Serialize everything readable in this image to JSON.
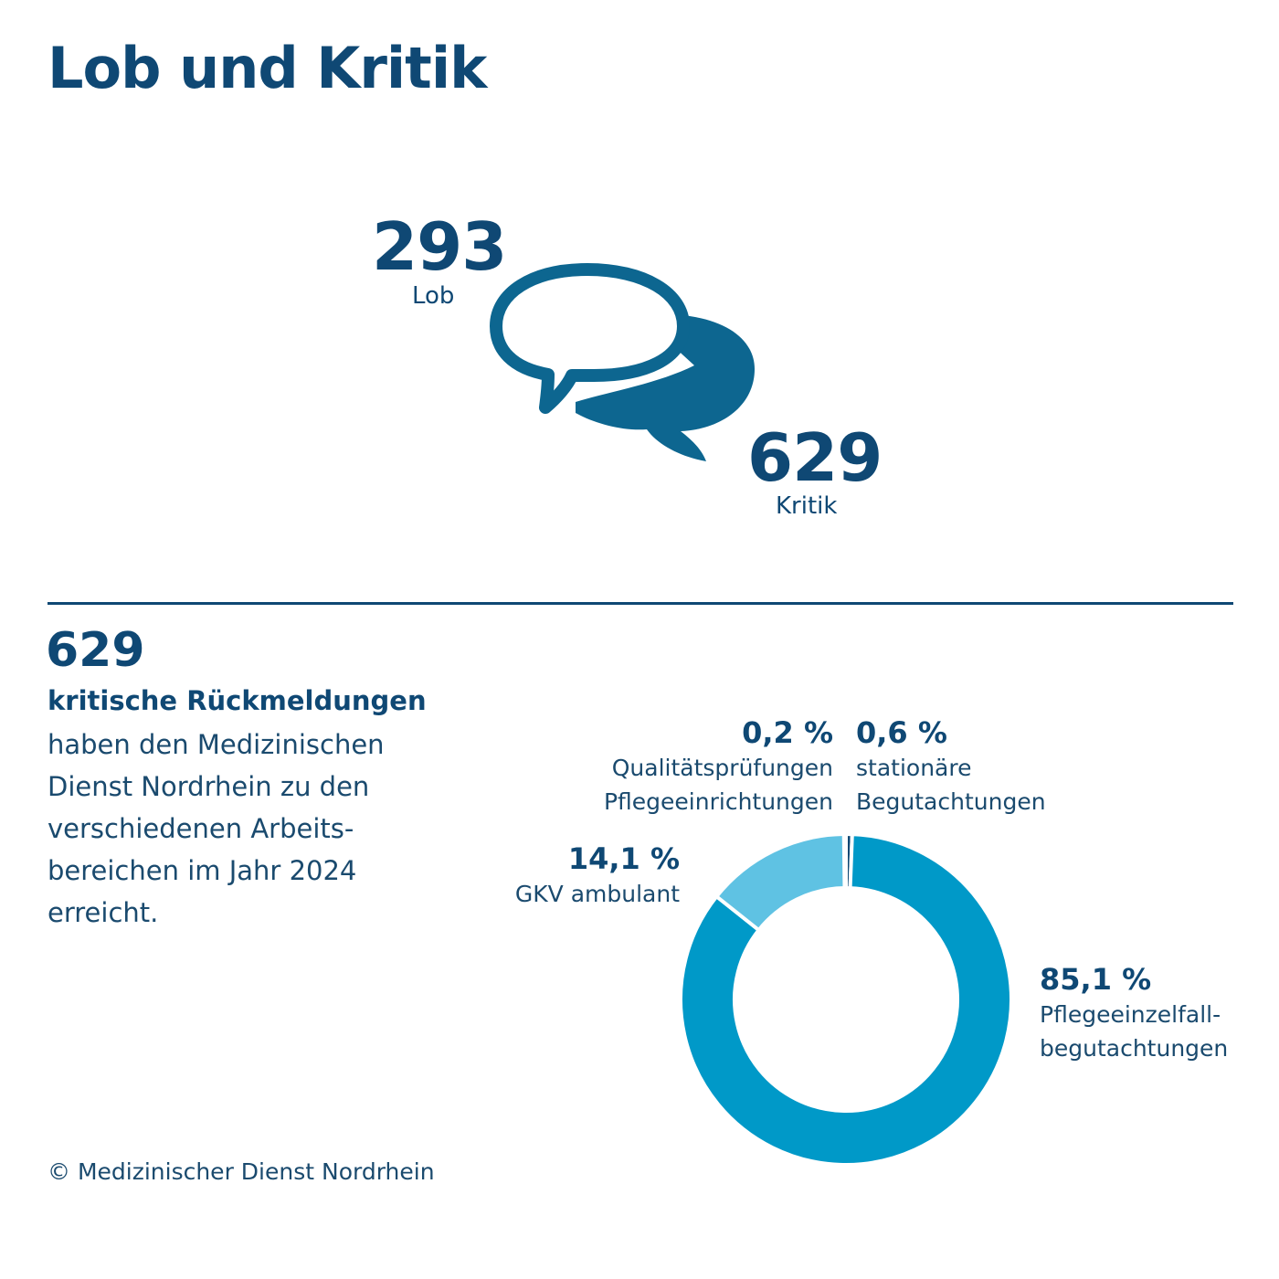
{
  "title": "Lob und Kritik",
  "lob": {
    "count": "293",
    "label": "Lob"
  },
  "kritik": {
    "count": "629",
    "label": "Kritik"
  },
  "colors": {
    "dark_blue": "#0f4874",
    "bubble_blue": "#0d6690",
    "segment_main": "#0099c8",
    "segment_light": "#5fc2e3",
    "segment_dark": "#0f4874"
  },
  "icons": {
    "praise_bubble": "speech-bubble-outline-icon",
    "criticism_bubble": "speech-bubble-filled-icon"
  },
  "summary": {
    "count": "629",
    "subtitle": "kritische Rückmeldungen",
    "description_lines": [
      "haben den Medizinischen",
      "Dienst Nordrhein zu den",
      "verschiedenen Arbeits-",
      "bereichen im Jahr 2024",
      "erreicht."
    ]
  },
  "chart_data": {
    "type": "pie",
    "donut": true,
    "categories": [
      "Qualitätsprüfungen Pflegeeinrichtungen",
      "stationäre Begutachtungen",
      "Pflegeeinzelfallbegutachtungen",
      "GKV ambulant"
    ],
    "values": [
      0.2,
      0.6,
      85.1,
      14.1
    ],
    "unit": "%",
    "slice_colors": [
      "#0f4874",
      "#0f4874",
      "#0099c8",
      "#5fc2e3"
    ],
    "labels": [
      {
        "pct": "0,2 %",
        "lines": [
          "Qualitätsprüfungen",
          "Pflegeeinrichtungen"
        ]
      },
      {
        "pct": "0,6 %",
        "lines": [
          "stationäre",
          "Begutachtungen"
        ]
      },
      {
        "pct": "85,1 %",
        "lines": [
          "Pflegeeinzelfall-",
          "begutachtungen"
        ]
      },
      {
        "pct": "14,1 %",
        "lines": [
          "GKV ambulant"
        ]
      }
    ]
  },
  "footer": {
    "copyright": "© Medizinischer Dienst Nordrhein"
  }
}
